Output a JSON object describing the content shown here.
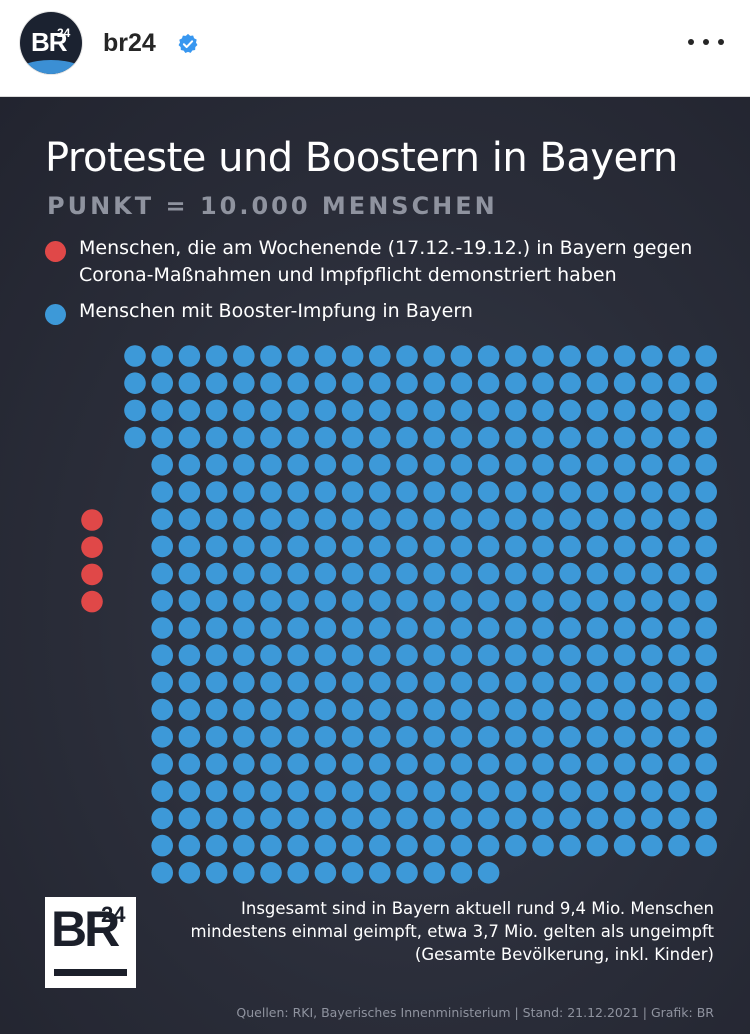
{
  "post": {
    "username": "br24",
    "avatar_text": "BR",
    "avatar_sup": "24",
    "verified_icon": "verified-badge-icon",
    "more_icon": "more-options-icon"
  },
  "graphic": {
    "title": "Proteste und Boostern in Bayern",
    "subtitle": "PUNKT = 10.000 MENSCHEN",
    "legend": [
      {
        "label": "Menschen, die am Wochenende (17.12.-19.12.) in Bayern gegen Corona-Maßnahmen und Impfpflicht demonstriert haben",
        "color": "#e04848"
      },
      {
        "label": "Menschen mit Booster-Impfung in Bayern",
        "color": "#3d99d8"
      }
    ],
    "note": "Insgesamt sind in Bayern aktuell rund 9,4 Mio. Menschen mindestens einmal geimpft, etwa 3,7 Mio. gelten als ungeimpft (Gesamte Bevölkerung, inkl. Kinder)",
    "source": "Quellen: RKI, Bayerisches Innenministerium | Stand: 21.12.2021 | Grafik: BR",
    "logo_text": "BR",
    "logo_sup": "24"
  },
  "chart_data": {
    "type": "unit-dot",
    "title": "Proteste und Boostern in Bayern",
    "unit": "PUNKT = 10.000 MENSCHEN",
    "series": [
      {
        "name": "Menschen, die am Wochenende (17.12.-19.12.) in Bayern gegen Corona-Maßnahmen und Impfpflicht demonstriert haben",
        "dots": 4,
        "color": "#e04848"
      },
      {
        "name": "Menschen mit Booster-Impfung in Bayern",
        "dots": 416,
        "color": "#3d99d8"
      }
    ]
  }
}
